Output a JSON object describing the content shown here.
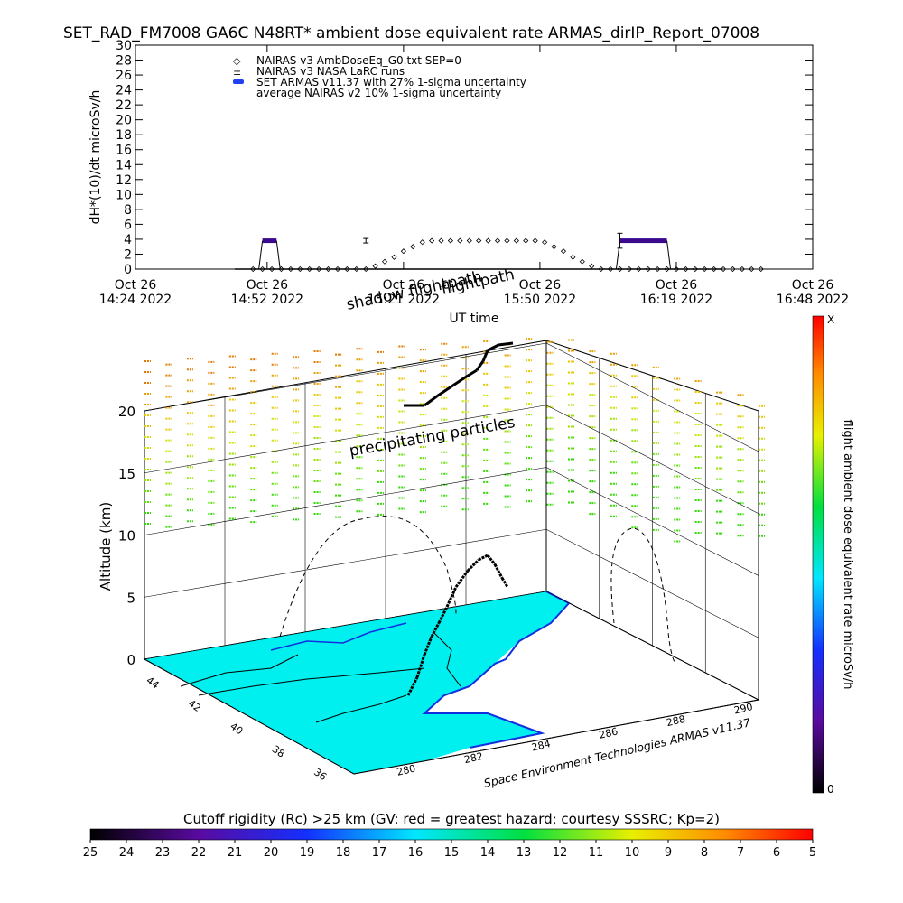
{
  "page_title": "SET_RAD_FM7008  GA6C N48RT* ambient dose equivalent rate ARMAS_dirIP_Report_07008",
  "colors": {
    "armas": "#3b0a8f",
    "blue_marker": "#1f3ff0",
    "ocean": "#00f0f0",
    "coast": "#1030e0"
  },
  "chart_data": [
    {
      "type": "scatter",
      "name": "dose-rate-timeseries",
      "ylabel": "dH*(10)/dt microSv/h",
      "xlabel": "UT time",
      "ylim": [
        0,
        30
      ],
      "yticks": [
        0,
        2,
        4,
        6,
        8,
        10,
        12,
        14,
        16,
        18,
        20,
        22,
        24,
        26,
        28,
        30
      ],
      "xlim_min": [
        0,
        144
      ],
      "xticks": [
        {
          "min": 0,
          "line1": "Oct 26",
          "line2": "14:24 2022"
        },
        {
          "min": 28,
          "line1": "Oct 26",
          "line2": "14:52 2022"
        },
        {
          "min": 57,
          "line1": "Oct 26",
          "line2": "15:21 2022"
        },
        {
          "min": 86,
          "line1": "Oct 26",
          "line2": "15:50 2022"
        },
        {
          "min": 115,
          "line1": "Oct 26",
          "line2": "16:19 2022"
        },
        {
          "min": 144,
          "line1": "Oct 26",
          "line2": "16:48 2022"
        }
      ],
      "legend": [
        {
          "symbol": "◇",
          "label": "NAIRAS v3 AmbDoseEq_G0.txt SEP=0"
        },
        {
          "symbol": "±",
          "label": "NAIRAS v3 NASA LaRC runs"
        },
        {
          "symbol": "●",
          "label": "SET ARMAS v11.37 with 27% 1-sigma uncertainty"
        },
        {
          "symbol": "",
          "label": "average NAIRAS v2 10% 1-sigma uncertainty"
        }
      ],
      "series": [
        {
          "name": "NAIRAS v3 AmbDoseEq_G0.txt SEP=0",
          "x_min": [
            25,
            27,
            29,
            31,
            33,
            35,
            37,
            39,
            41,
            43,
            45,
            47,
            49,
            51,
            53,
            55,
            57,
            59,
            61,
            63,
            65,
            67,
            69,
            71,
            73,
            75,
            77,
            79,
            81,
            83,
            85,
            87,
            89,
            91,
            93,
            95,
            97,
            99,
            101,
            103,
            105,
            107,
            109,
            111,
            113,
            115,
            117,
            119,
            121,
            123,
            125,
            127,
            129,
            131,
            133
          ],
          "values": [
            0,
            0,
            0,
            0,
            0,
            0,
            0,
            0,
            0,
            0,
            0,
            0,
            0,
            0.4,
            1.0,
            1.6,
            2.4,
            3.0,
            3.6,
            3.8,
            3.8,
            3.8,
            3.8,
            3.8,
            3.8,
            3.8,
            3.8,
            3.8,
            3.8,
            3.8,
            3.8,
            3.6,
            3.0,
            2.4,
            1.6,
            1.0,
            0.4,
            0,
            0,
            0,
            0,
            0,
            0,
            0,
            0,
            0,
            0,
            0,
            0,
            0,
            0,
            0,
            0,
            0,
            0
          ]
        },
        {
          "name": "SET ARMAS v11.37 with 27% 1-sigma uncertainty",
          "segments": [
            {
              "x_min": [
                27,
                30
              ],
              "value": 3.8
            },
            {
              "x_min": [
                103,
                113
              ],
              "value": 3.8
            }
          ]
        },
        {
          "name": "NAIRAS v3 NASA LaRC runs",
          "points": [
            {
              "x_min": 49,
              "value": 3.8,
              "err": 0.3
            },
            {
              "x_min": 103,
              "value": 3.8,
              "err": 1.0
            }
          ]
        }
      ]
    },
    {
      "type": "scatter",
      "name": "3d-flight-altitude-map",
      "ylabel": "Altitude (km)",
      "zticks": [
        0,
        5,
        10,
        15,
        20
      ],
      "lat_ticks": [
        44,
        42,
        40,
        38,
        36
      ],
      "lon_ticks": [
        280,
        282,
        284,
        286,
        288,
        290
      ],
      "annotations": [
        "shadow flightpath",
        "flightpath",
        "precipitating particles"
      ],
      "credit": "Space Environment Technologies ARMAS v11.37",
      "right_colorbar": {
        "label": "flight ambient dose equivalent rate microSv/h",
        "top": "X",
        "bottom": "0"
      },
      "flight_track_lon_lat_alt": [
        [
          281.2,
          37.1,
          0
        ],
        [
          281.5,
          37.6,
          2
        ],
        [
          281.8,
          38.1,
          5
        ],
        [
          282.2,
          38.6,
          7.5
        ],
        [
          282.7,
          39.2,
          8.5
        ],
        [
          283.2,
          39.9,
          9
        ],
        [
          283.6,
          40.6,
          9.3
        ],
        [
          284.0,
          41.2,
          9.5
        ]
      ]
    },
    {
      "type": "heatmap",
      "name": "cutoff-rigidity-colorbar",
      "title": "Cutoff rigidity (Rc) >25 km (GV: red = greatest hazard; courtesy SSSRC; Kp=2)",
      "ticks": [
        25,
        24,
        23,
        22,
        21,
        20,
        19,
        18,
        17,
        16,
        15,
        14,
        13,
        12,
        11,
        10,
        9,
        8,
        7,
        6,
        5
      ]
    }
  ]
}
